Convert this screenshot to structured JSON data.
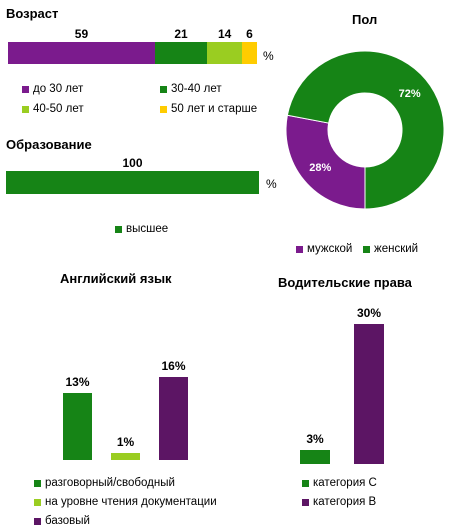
{
  "colors": {
    "purple": "#7b1b8d",
    "green": "#168416",
    "light_green": "#9acd21",
    "yellow": "#ffcc00",
    "dark_purple": "#5c1564"
  },
  "chart_data": [
    {
      "id": "age",
      "type": "bar",
      "orientation": "horizontal-stacked",
      "title": "Возраст",
      "unit_label": "%",
      "series": [
        {
          "name": "до 30 лет",
          "values": [
            59
          ]
        },
        {
          "name": "30-40 лет",
          "values": [
            21
          ]
        },
        {
          "name": "40-50 лет",
          "values": [
            14
          ]
        },
        {
          "name": "50 лет и старше",
          "values": [
            6
          ]
        }
      ],
      "legend_position": "bottom"
    },
    {
      "id": "gender",
      "type": "pie",
      "style": "donut",
      "title": "Пол",
      "slices": [
        {
          "name": "мужской",
          "value": 28,
          "label": "28%"
        },
        {
          "name": "женский",
          "value": 72,
          "label": "72%"
        }
      ],
      "legend_position": "bottom"
    },
    {
      "id": "education",
      "type": "bar",
      "orientation": "horizontal",
      "title": "Образование",
      "unit_label": "%",
      "series": [
        {
          "name": "высшее",
          "values": [
            100
          ]
        }
      ],
      "legend_position": "bottom"
    },
    {
      "id": "english",
      "type": "bar",
      "title": "Английский язык",
      "series": [
        {
          "name": "разговорный/свободный",
          "values": [
            13
          ],
          "label": "13%"
        },
        {
          "name": "на уровне чтения документации",
          "values": [
            1
          ],
          "label": "1%"
        },
        {
          "name": "базовый",
          "values": [
            16
          ],
          "label": "16%"
        }
      ],
      "legend_position": "bottom"
    },
    {
      "id": "license",
      "type": "bar",
      "title": "Водительские права",
      "series": [
        {
          "name": "категория  С",
          "values": [
            3
          ],
          "label": "3%"
        },
        {
          "name": "категория  В",
          "values": [
            30
          ],
          "label": "30%"
        }
      ],
      "legend_position": "bottom"
    }
  ]
}
